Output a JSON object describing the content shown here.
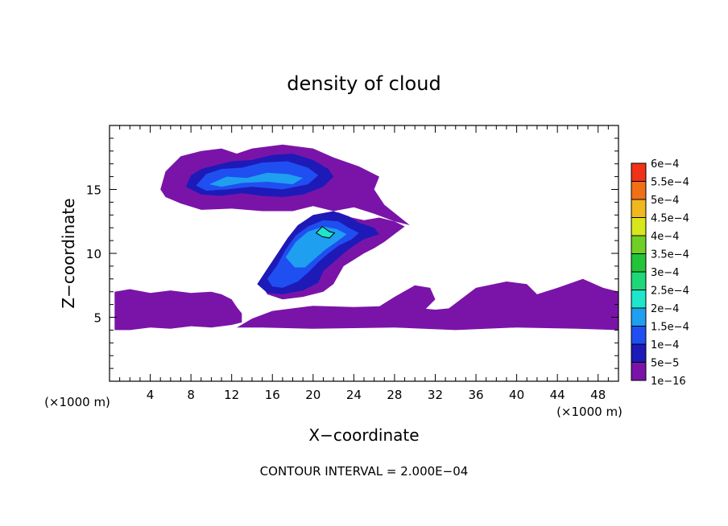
{
  "chart_data": {
    "type": "heatmap",
    "title": "density of cloud",
    "xlabel": "X−coordinate",
    "ylabel": "Z−coordinate",
    "x_unit_left": "(×1000 m)",
    "x_unit_right": "(×1000 m)",
    "xlim": [
      0,
      50
    ],
    "ylim": [
      0,
      20
    ],
    "x_ticks": [
      4,
      8,
      12,
      16,
      20,
      24,
      28,
      32,
      36,
      40,
      44,
      48
    ],
    "x_tick_labels": [
      "4",
      "8",
      "12",
      "16",
      "20",
      "24",
      "28",
      "32",
      "36",
      "40",
      "44",
      "48"
    ],
    "y_ticks": [
      5,
      10,
      15
    ],
    "y_tick_labels": [
      "5",
      "10",
      "15"
    ],
    "footer": "CONTOUR INTERVAL = 2.000E−04",
    "grid": false,
    "colorbar": {
      "levels": [
        "1e−16",
        "5e−5",
        "1e−4",
        "1.5e−4",
        "2e−4",
        "2.5e−4",
        "3e−4",
        "3.5e−4",
        "4e−4",
        "4.5e−4",
        "5e−4",
        "5.5e−4",
        "6e−4"
      ],
      "colors": [
        "#7a14a8",
        "#1d1ab8",
        "#1f4ff0",
        "#1e9ff0",
        "#1ee6cc",
        "#1ed878",
        "#22c43a",
        "#6fcf22",
        "#d8e61c",
        "#f0b81e",
        "#f07018",
        "#f03218",
        "#f08c8c"
      ]
    },
    "regions": [
      {
        "level": 0,
        "points": [
          [
            0.5,
            4
          ],
          [
            0.5,
            7
          ],
          [
            2,
            7.2
          ],
          [
            4,
            6.9
          ],
          [
            6,
            7.1
          ],
          [
            8,
            6.9
          ],
          [
            10,
            7
          ],
          [
            11,
            6.8
          ],
          [
            12,
            6.4
          ],
          [
            12.5,
            5.8
          ],
          [
            13,
            5.3
          ],
          [
            13,
            4.6
          ],
          [
            12,
            4.4
          ],
          [
            10,
            4.2
          ],
          [
            8,
            4.3
          ],
          [
            6,
            4.1
          ],
          [
            4,
            4.2
          ],
          [
            2,
            4.0
          ]
        ]
      },
      {
        "level": 0,
        "points": [
          [
            12.5,
            4.2
          ],
          [
            14,
            4.9
          ],
          [
            16,
            5.5
          ],
          [
            20,
            5.9
          ],
          [
            24,
            5.8
          ],
          [
            28,
            5.9
          ],
          [
            32,
            5.6
          ],
          [
            36,
            5.9
          ],
          [
            40,
            6.2
          ],
          [
            44,
            6.4
          ],
          [
            48,
            6.3
          ],
          [
            50,
            6
          ],
          [
            50,
            4
          ],
          [
            46,
            4.1
          ],
          [
            40,
            4.2
          ],
          [
            34,
            4.0
          ],
          [
            28,
            4.2
          ],
          [
            20,
            4.1
          ],
          [
            15,
            4.2
          ]
        ]
      },
      {
        "level": 0,
        "points": [
          [
            33,
            5.5
          ],
          [
            36,
            7.3
          ],
          [
            39,
            7.8
          ],
          [
            41,
            7.6
          ],
          [
            42,
            6.8
          ],
          [
            44,
            7.3
          ],
          [
            46.5,
            8
          ],
          [
            48.5,
            7.3
          ],
          [
            50,
            7
          ],
          [
            50,
            6
          ],
          [
            44,
            6
          ],
          [
            38,
            5.6
          ]
        ]
      },
      {
        "level": 0,
        "points": [
          [
            26,
            5.6
          ],
          [
            28,
            6.6
          ],
          [
            30,
            7.5
          ],
          [
            31.5,
            7.3
          ],
          [
            32,
            6.4
          ],
          [
            31,
            5.6
          ]
        ]
      },
      {
        "level": 0,
        "points": [
          [
            15,
            7.5
          ],
          [
            16,
            9
          ],
          [
            17,
            10.5
          ],
          [
            18.3,
            11.9
          ],
          [
            19.5,
            12.6
          ],
          [
            21,
            13.1
          ],
          [
            22.5,
            13.2
          ],
          [
            23.8,
            12.8
          ],
          [
            25,
            12.6
          ],
          [
            26.5,
            12.8
          ],
          [
            28,
            12.5
          ],
          [
            29,
            12.1
          ],
          [
            28,
            11.5
          ],
          [
            27,
            10.9
          ],
          [
            26,
            10.4
          ],
          [
            25,
            10
          ],
          [
            24,
            9.5
          ],
          [
            23,
            9
          ],
          [
            22.5,
            8.3
          ],
          [
            22,
            7.6
          ],
          [
            21,
            7
          ],
          [
            19,
            6.6
          ],
          [
            17,
            6.4
          ],
          [
            15.5,
            6.8
          ]
        ]
      },
      {
        "level": 0,
        "points": [
          [
            5,
            15
          ],
          [
            5.5,
            16.4
          ],
          [
            7,
            17.6
          ],
          [
            9,
            18
          ],
          [
            11,
            18.2
          ],
          [
            12.5,
            17.8
          ],
          [
            14,
            18.2
          ],
          [
            17,
            18.5
          ],
          [
            20,
            18.2
          ],
          [
            22,
            17.5
          ],
          [
            24.5,
            16.8
          ],
          [
            26.5,
            16
          ],
          [
            26,
            15
          ],
          [
            27,
            13.8
          ],
          [
            29.5,
            12.2
          ],
          [
            28,
            12.5
          ],
          [
            26,
            13.1
          ],
          [
            24,
            13.6
          ],
          [
            22,
            13.3
          ],
          [
            20,
            13.7
          ],
          [
            18,
            13.3
          ],
          [
            15,
            13.3
          ],
          [
            12,
            13.5
          ],
          [
            9,
            13.4
          ],
          [
            7,
            13.9
          ],
          [
            5.5,
            14.4
          ]
        ]
      },
      {
        "level": 1,
        "points": [
          [
            7.5,
            15.2
          ],
          [
            8,
            16.1
          ],
          [
            9,
            16.6
          ],
          [
            10.5,
            16.9
          ],
          [
            12,
            17.2
          ],
          [
            14,
            17.3
          ],
          [
            16,
            17.7
          ],
          [
            18,
            17.8
          ],
          [
            20,
            17.3
          ],
          [
            21.5,
            16.6
          ],
          [
            22,
            16
          ],
          [
            21,
            15.2
          ],
          [
            19,
            14.6
          ],
          [
            17,
            14.4
          ],
          [
            15,
            14.5
          ],
          [
            13,
            14.7
          ],
          [
            11,
            14.5
          ],
          [
            9,
            14.6
          ]
        ]
      },
      {
        "level": 1,
        "points": [
          [
            14.5,
            7.6
          ],
          [
            15.5,
            8.8
          ],
          [
            16.5,
            10
          ],
          [
            17.5,
            11.2
          ],
          [
            18.5,
            12.2
          ],
          [
            20,
            13
          ],
          [
            22,
            13.3
          ],
          [
            23.5,
            12.9
          ],
          [
            24.5,
            12.4
          ],
          [
            26,
            12
          ],
          [
            26.5,
            11.5
          ],
          [
            25,
            11.1
          ],
          [
            24,
            10.6
          ],
          [
            23,
            10
          ],
          [
            22,
            9.3
          ],
          [
            21,
            8.6
          ],
          [
            20.5,
            7.7
          ],
          [
            19,
            7.1
          ],
          [
            17,
            6.8
          ],
          [
            15.5,
            6.9
          ]
        ]
      },
      {
        "level": 2,
        "points": [
          [
            8.5,
            15.3
          ],
          [
            9.5,
            16.2
          ],
          [
            11,
            16.6
          ],
          [
            13,
            16.7
          ],
          [
            15,
            17.1
          ],
          [
            17.5,
            17.2
          ],
          [
            19.5,
            16.7
          ],
          [
            20.5,
            16.1
          ],
          [
            19.5,
            15.4
          ],
          [
            17,
            15
          ],
          [
            14,
            15.2
          ],
          [
            11.5,
            15
          ],
          [
            9.5,
            14.9
          ]
        ]
      },
      {
        "level": 2,
        "points": [
          [
            15.5,
            8
          ],
          [
            16.5,
            9.1
          ],
          [
            17.3,
            10.3
          ],
          [
            18.3,
            11.4
          ],
          [
            19.5,
            12.1
          ],
          [
            21,
            12.6
          ],
          [
            22.5,
            12.5
          ],
          [
            23.5,
            12
          ],
          [
            24.5,
            11.6
          ],
          [
            23.8,
            11.1
          ],
          [
            22.5,
            10.6
          ],
          [
            21.5,
            10
          ],
          [
            20.5,
            9.3
          ],
          [
            19.5,
            8.5
          ],
          [
            18.5,
            7.8
          ],
          [
            17,
            7.3
          ],
          [
            16,
            7.4
          ]
        ]
      },
      {
        "level": 3,
        "points": [
          [
            9.8,
            15.4
          ],
          [
            11.5,
            16
          ],
          [
            13.5,
            15.9
          ],
          [
            15.5,
            16.3
          ],
          [
            17.5,
            16.2
          ],
          [
            19,
            15.9
          ],
          [
            18,
            15.4
          ],
          [
            15.5,
            15.6
          ],
          [
            13,
            15.5
          ],
          [
            11,
            15.2
          ]
        ]
      },
      {
        "level": 3,
        "points": [
          [
            17.3,
            9.7
          ],
          [
            18.3,
            10.9
          ],
          [
            19.5,
            11.7
          ],
          [
            21,
            12.1
          ],
          [
            22.3,
            11.9
          ],
          [
            23.3,
            11.5
          ],
          [
            22.3,
            10.9
          ],
          [
            21.2,
            10.3
          ],
          [
            20.2,
            9.6
          ],
          [
            19.2,
            8.9
          ],
          [
            18.2,
            8.9
          ]
        ]
      },
      {
        "level": 4,
        "points": [
          [
            20.3,
            11.6
          ],
          [
            20.9,
            12.1
          ],
          [
            21.6,
            11.7
          ],
          [
            22.1,
            11.6
          ],
          [
            21.6,
            11.2
          ],
          [
            20.9,
            11.3
          ]
        ]
      }
    ]
  }
}
